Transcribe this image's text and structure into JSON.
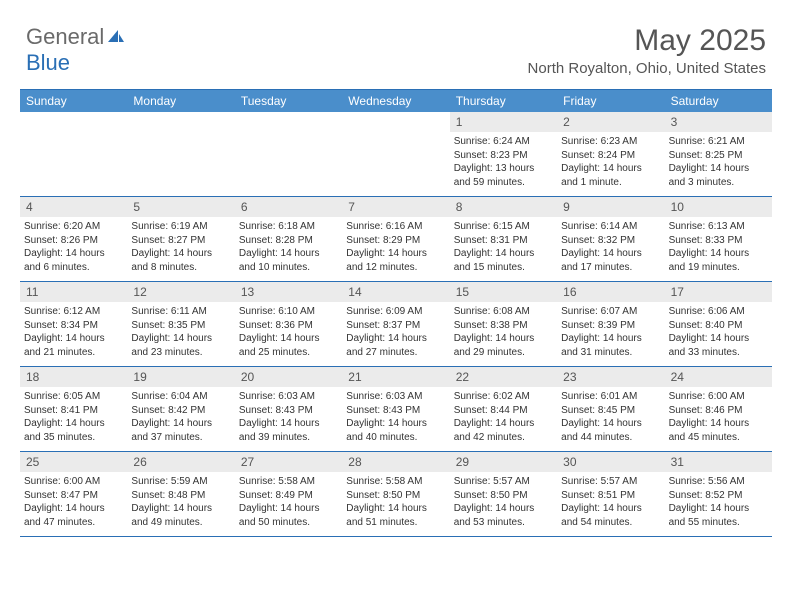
{
  "logo": {
    "textGray": "General",
    "textBlue": "Blue"
  },
  "title": "May 2025",
  "subtitle": "North Royalton, Ohio, United States",
  "colors": {
    "header_bg": "#4a8ecb",
    "border": "#2a6fb5",
    "daynum_bg": "#ebebeb",
    "text": "#333333",
    "logo_gray": "#6a6a6a",
    "logo_blue": "#2a6fb5"
  },
  "weekdays": [
    "Sunday",
    "Monday",
    "Tuesday",
    "Wednesday",
    "Thursday",
    "Friday",
    "Saturday"
  ],
  "weeks": [
    [
      null,
      null,
      null,
      null,
      {
        "n": "1",
        "sr": "Sunrise: 6:24 AM",
        "ss": "Sunset: 8:23 PM",
        "dl1": "Daylight: 13 hours",
        "dl2": "and 59 minutes."
      },
      {
        "n": "2",
        "sr": "Sunrise: 6:23 AM",
        "ss": "Sunset: 8:24 PM",
        "dl1": "Daylight: 14 hours",
        "dl2": "and 1 minute."
      },
      {
        "n": "3",
        "sr": "Sunrise: 6:21 AM",
        "ss": "Sunset: 8:25 PM",
        "dl1": "Daylight: 14 hours",
        "dl2": "and 3 minutes."
      }
    ],
    [
      {
        "n": "4",
        "sr": "Sunrise: 6:20 AM",
        "ss": "Sunset: 8:26 PM",
        "dl1": "Daylight: 14 hours",
        "dl2": "and 6 minutes."
      },
      {
        "n": "5",
        "sr": "Sunrise: 6:19 AM",
        "ss": "Sunset: 8:27 PM",
        "dl1": "Daylight: 14 hours",
        "dl2": "and 8 minutes."
      },
      {
        "n": "6",
        "sr": "Sunrise: 6:18 AM",
        "ss": "Sunset: 8:28 PM",
        "dl1": "Daylight: 14 hours",
        "dl2": "and 10 minutes."
      },
      {
        "n": "7",
        "sr": "Sunrise: 6:16 AM",
        "ss": "Sunset: 8:29 PM",
        "dl1": "Daylight: 14 hours",
        "dl2": "and 12 minutes."
      },
      {
        "n": "8",
        "sr": "Sunrise: 6:15 AM",
        "ss": "Sunset: 8:31 PM",
        "dl1": "Daylight: 14 hours",
        "dl2": "and 15 minutes."
      },
      {
        "n": "9",
        "sr": "Sunrise: 6:14 AM",
        "ss": "Sunset: 8:32 PM",
        "dl1": "Daylight: 14 hours",
        "dl2": "and 17 minutes."
      },
      {
        "n": "10",
        "sr": "Sunrise: 6:13 AM",
        "ss": "Sunset: 8:33 PM",
        "dl1": "Daylight: 14 hours",
        "dl2": "and 19 minutes."
      }
    ],
    [
      {
        "n": "11",
        "sr": "Sunrise: 6:12 AM",
        "ss": "Sunset: 8:34 PM",
        "dl1": "Daylight: 14 hours",
        "dl2": "and 21 minutes."
      },
      {
        "n": "12",
        "sr": "Sunrise: 6:11 AM",
        "ss": "Sunset: 8:35 PM",
        "dl1": "Daylight: 14 hours",
        "dl2": "and 23 minutes."
      },
      {
        "n": "13",
        "sr": "Sunrise: 6:10 AM",
        "ss": "Sunset: 8:36 PM",
        "dl1": "Daylight: 14 hours",
        "dl2": "and 25 minutes."
      },
      {
        "n": "14",
        "sr": "Sunrise: 6:09 AM",
        "ss": "Sunset: 8:37 PM",
        "dl1": "Daylight: 14 hours",
        "dl2": "and 27 minutes."
      },
      {
        "n": "15",
        "sr": "Sunrise: 6:08 AM",
        "ss": "Sunset: 8:38 PM",
        "dl1": "Daylight: 14 hours",
        "dl2": "and 29 minutes."
      },
      {
        "n": "16",
        "sr": "Sunrise: 6:07 AM",
        "ss": "Sunset: 8:39 PM",
        "dl1": "Daylight: 14 hours",
        "dl2": "and 31 minutes."
      },
      {
        "n": "17",
        "sr": "Sunrise: 6:06 AM",
        "ss": "Sunset: 8:40 PM",
        "dl1": "Daylight: 14 hours",
        "dl2": "and 33 minutes."
      }
    ],
    [
      {
        "n": "18",
        "sr": "Sunrise: 6:05 AM",
        "ss": "Sunset: 8:41 PM",
        "dl1": "Daylight: 14 hours",
        "dl2": "and 35 minutes."
      },
      {
        "n": "19",
        "sr": "Sunrise: 6:04 AM",
        "ss": "Sunset: 8:42 PM",
        "dl1": "Daylight: 14 hours",
        "dl2": "and 37 minutes."
      },
      {
        "n": "20",
        "sr": "Sunrise: 6:03 AM",
        "ss": "Sunset: 8:43 PM",
        "dl1": "Daylight: 14 hours",
        "dl2": "and 39 minutes."
      },
      {
        "n": "21",
        "sr": "Sunrise: 6:03 AM",
        "ss": "Sunset: 8:43 PM",
        "dl1": "Daylight: 14 hours",
        "dl2": "and 40 minutes."
      },
      {
        "n": "22",
        "sr": "Sunrise: 6:02 AM",
        "ss": "Sunset: 8:44 PM",
        "dl1": "Daylight: 14 hours",
        "dl2": "and 42 minutes."
      },
      {
        "n": "23",
        "sr": "Sunrise: 6:01 AM",
        "ss": "Sunset: 8:45 PM",
        "dl1": "Daylight: 14 hours",
        "dl2": "and 44 minutes."
      },
      {
        "n": "24",
        "sr": "Sunrise: 6:00 AM",
        "ss": "Sunset: 8:46 PM",
        "dl1": "Daylight: 14 hours",
        "dl2": "and 45 minutes."
      }
    ],
    [
      {
        "n": "25",
        "sr": "Sunrise: 6:00 AM",
        "ss": "Sunset: 8:47 PM",
        "dl1": "Daylight: 14 hours",
        "dl2": "and 47 minutes."
      },
      {
        "n": "26",
        "sr": "Sunrise: 5:59 AM",
        "ss": "Sunset: 8:48 PM",
        "dl1": "Daylight: 14 hours",
        "dl2": "and 49 minutes."
      },
      {
        "n": "27",
        "sr": "Sunrise: 5:58 AM",
        "ss": "Sunset: 8:49 PM",
        "dl1": "Daylight: 14 hours",
        "dl2": "and 50 minutes."
      },
      {
        "n": "28",
        "sr": "Sunrise: 5:58 AM",
        "ss": "Sunset: 8:50 PM",
        "dl1": "Daylight: 14 hours",
        "dl2": "and 51 minutes."
      },
      {
        "n": "29",
        "sr": "Sunrise: 5:57 AM",
        "ss": "Sunset: 8:50 PM",
        "dl1": "Daylight: 14 hours",
        "dl2": "and 53 minutes."
      },
      {
        "n": "30",
        "sr": "Sunrise: 5:57 AM",
        "ss": "Sunset: 8:51 PM",
        "dl1": "Daylight: 14 hours",
        "dl2": "and 54 minutes."
      },
      {
        "n": "31",
        "sr": "Sunrise: 5:56 AM",
        "ss": "Sunset: 8:52 PM",
        "dl1": "Daylight: 14 hours",
        "dl2": "and 55 minutes."
      }
    ]
  ]
}
